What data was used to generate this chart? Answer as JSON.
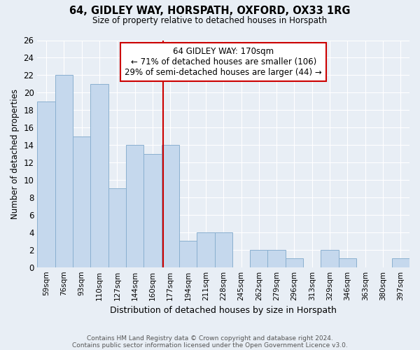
{
  "title": "64, GIDLEY WAY, HORSPATH, OXFORD, OX33 1RG",
  "subtitle": "Size of property relative to detached houses in Horspath",
  "xlabel": "Distribution of detached houses by size in Horspath",
  "ylabel": "Number of detached properties",
  "bins": [
    "59sqm",
    "76sqm",
    "93sqm",
    "110sqm",
    "127sqm",
    "144sqm",
    "160sqm",
    "177sqm",
    "194sqm",
    "211sqm",
    "228sqm",
    "245sqm",
    "262sqm",
    "279sqm",
    "296sqm",
    "313sqm",
    "329sqm",
    "346sqm",
    "363sqm",
    "380sqm",
    "397sqm"
  ],
  "values": [
    19,
    22,
    15,
    21,
    9,
    14,
    13,
    14,
    3,
    4,
    4,
    0,
    2,
    2,
    1,
    0,
    2,
    1,
    0,
    0,
    1
  ],
  "bar_color": "#c5d8ed",
  "bar_edge_color": "#8ab0d0",
  "annotation_line1": "64 GIDLEY WAY: 170sqm",
  "annotation_line2": "← 71% of detached houses are smaller (106)",
  "annotation_line3": "29% of semi-detached houses are larger (44) →",
  "box_edge_color": "#cc0000",
  "line_color": "#cc0000",
  "line_x_index": 6.59,
  "ylim": [
    0,
    26
  ],
  "yticks": [
    0,
    2,
    4,
    6,
    8,
    10,
    12,
    14,
    16,
    18,
    20,
    22,
    24,
    26
  ],
  "background_color": "#e8eef5",
  "grid_color": "#ffffff",
  "footnote1": "Contains HM Land Registry data © Crown copyright and database right 2024.",
  "footnote2": "Contains public sector information licensed under the Open Government Licence v3.0."
}
